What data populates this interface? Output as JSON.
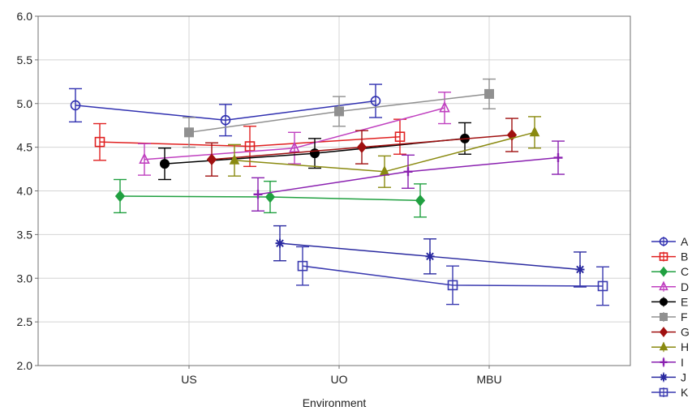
{
  "chart_data": {
    "type": "line",
    "title": "",
    "xlabel": "Environment",
    "ylabel": "",
    "categories": [
      "US",
      "UO",
      "MBU"
    ],
    "ylim": [
      2.0,
      6.0
    ],
    "yticks": [
      "2.0",
      "2.5",
      "3.0",
      "3.5",
      "4.0",
      "4.5",
      "5.0",
      "5.5",
      "6.0"
    ],
    "grid": true,
    "legend_position": "right",
    "error_bars": true,
    "series": [
      {
        "name": "A",
        "color": "#3030b0",
        "marker": "circle-open",
        "values": [
          4.98,
          4.81,
          5.03
        ],
        "errors": [
          0.19,
          0.18,
          0.19
        ]
      },
      {
        "name": "B",
        "color": "#e02020",
        "marker": "square-open",
        "values": [
          4.56,
          4.51,
          4.62
        ],
        "errors": [
          0.21,
          0.23,
          0.2
        ]
      },
      {
        "name": "C",
        "color": "#20a040",
        "marker": "diamond-filled",
        "values": [
          3.94,
          3.93,
          3.89
        ],
        "errors": [
          0.19,
          0.18,
          0.19
        ]
      },
      {
        "name": "D",
        "color": "#c040c0",
        "marker": "triangle-open",
        "values": [
          4.36,
          4.49,
          4.95
        ],
        "errors": [
          0.18,
          0.18,
          0.18
        ]
      },
      {
        "name": "E",
        "color": "#000000",
        "marker": "circle-filled",
        "values": [
          4.31,
          4.43,
          4.6
        ],
        "errors": [
          0.18,
          0.17,
          0.18
        ]
      },
      {
        "name": "F",
        "color": "#909090",
        "marker": "square-filled",
        "values": [
          4.67,
          4.91,
          5.11
        ],
        "errors": [
          0.17,
          0.17,
          0.17
        ]
      },
      {
        "name": "G",
        "color": "#a01010",
        "marker": "diamond-filled",
        "values": [
          4.36,
          4.5,
          4.64
        ],
        "errors": [
          0.19,
          0.19,
          0.19
        ]
      },
      {
        "name": "H",
        "color": "#8a8a10",
        "marker": "triangle-filled",
        "values": [
          4.35,
          4.22,
          4.67
        ],
        "errors": [
          0.18,
          0.18,
          0.18
        ]
      },
      {
        "name": "I",
        "color": "#8a20b0",
        "marker": "plus",
        "values": [
          3.96,
          4.22,
          4.38
        ],
        "errors": [
          0.19,
          0.19,
          0.19
        ]
      },
      {
        "name": "J",
        "color": "#2a2aa0",
        "marker": "asterisk",
        "values": [
          3.4,
          3.25,
          3.1
        ],
        "errors": [
          0.2,
          0.2,
          0.2
        ]
      },
      {
        "name": "K",
        "color": "#3a3ab0",
        "marker": "square-open",
        "values": [
          3.14,
          2.92,
          2.91
        ],
        "errors": [
          0.22,
          0.22,
          0.22
        ]
      }
    ]
  }
}
